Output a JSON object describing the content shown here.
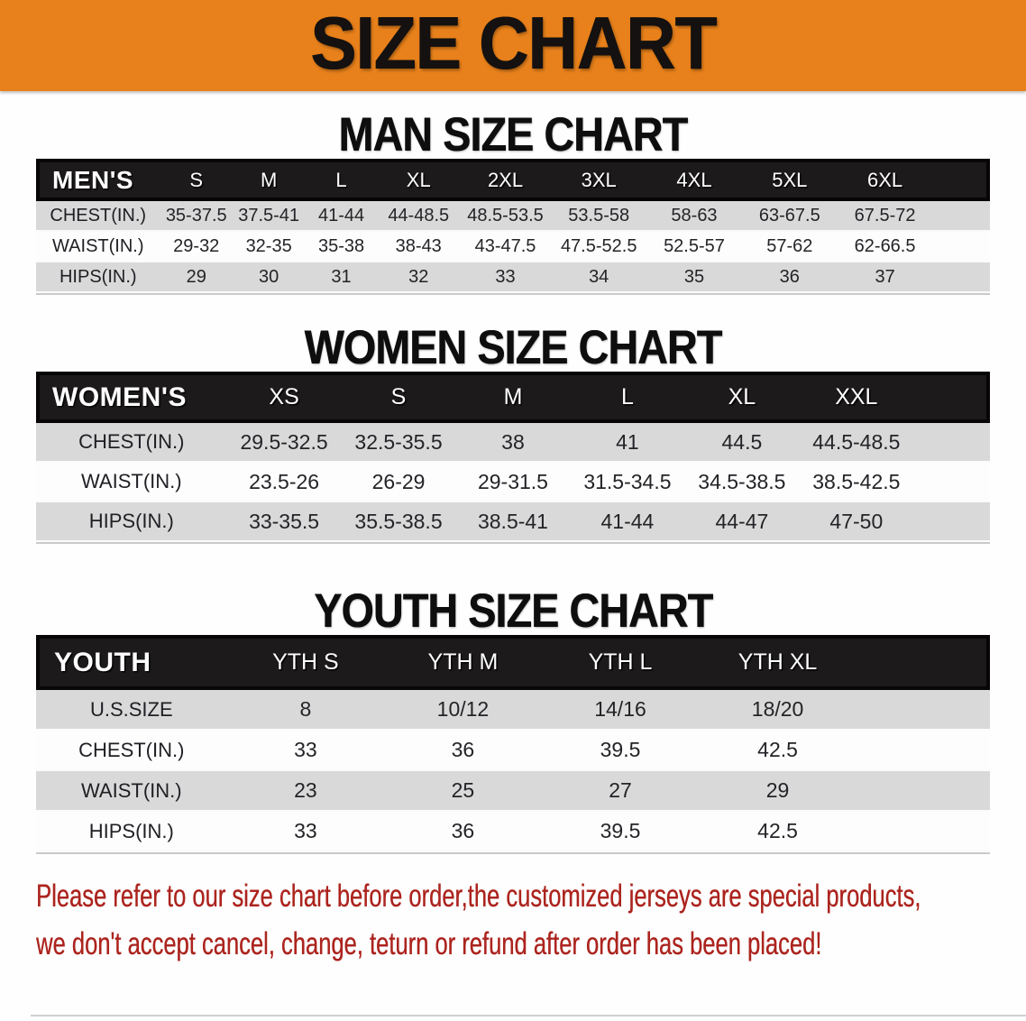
{
  "banner": {
    "title": "SIZE CHART",
    "bg_color": "#E8811B",
    "text_color": "#141110"
  },
  "sections": [
    {
      "id": "men",
      "heading": "MAN SIZE CHART",
      "table": {
        "corner_label": "MEN'S",
        "columns": [
          "S",
          "M",
          "L",
          "XL",
          "2XL",
          "3XL",
          "4XL",
          "5XL",
          "6XL"
        ],
        "rows": [
          {
            "label": "CHEST(IN.)",
            "values": [
              "35-37.5",
              "37.5-41",
              "41-44",
              "44-48.5",
              "48.5-53.5",
              "53.5-58",
              "58-63",
              "63-67.5",
              "67.5-72"
            ]
          },
          {
            "label": "WAIST(IN.)",
            "values": [
              "29-32",
              "32-35",
              "35-38",
              "38-43",
              "43-47.5",
              "47.5-52.5",
              "52.5-57",
              "57-62",
              "62-66.5"
            ]
          },
          {
            "label": "HIPS(IN.)",
            "values": [
              "29",
              "30",
              "31",
              "32",
              "33",
              "34",
              "35",
              "36",
              "37"
            ]
          }
        ]
      }
    },
    {
      "id": "women",
      "heading": "WOMEN SIZE CHART",
      "table": {
        "corner_label": "WOMEN'S",
        "columns": [
          "XS",
          "S",
          "M",
          "L",
          "XL",
          "XXL"
        ],
        "rows": [
          {
            "label": "CHEST(IN.)",
            "values": [
              "29.5-32.5",
              "32.5-35.5",
              "38",
              "41",
              "44.5",
              "44.5-48.5"
            ]
          },
          {
            "label": "WAIST(IN.)",
            "values": [
              "23.5-26",
              "26-29",
              "29-31.5",
              "31.5-34.5",
              "34.5-38.5",
              "38.5-42.5"
            ]
          },
          {
            "label": "HIPS(IN.)",
            "values": [
              "33-35.5",
              "35.5-38.5",
              "38.5-41",
              "41-44",
              "44-47",
              "47-50"
            ]
          }
        ]
      }
    },
    {
      "id": "youth",
      "heading": "YOUTH SIZE CHART",
      "table": {
        "corner_label": "YOUTH",
        "columns": [
          "YTH S",
          "YTH M",
          "YTH L",
          "YTH XL"
        ],
        "rows": [
          {
            "label": "U.S.SIZE",
            "values": [
              "8",
              "10/12",
              "14/16",
              "18/20"
            ]
          },
          {
            "label": "CHEST(IN.)",
            "values": [
              "33",
              "36",
              "39.5",
              "42.5"
            ]
          },
          {
            "label": "WAIST(IN.)",
            "values": [
              "23",
              "25",
              "27",
              "29"
            ]
          },
          {
            "label": "HIPS(IN.)",
            "values": [
              "33",
              "36",
              "39.5",
              "42.5"
            ]
          }
        ]
      }
    }
  ],
  "footer": {
    "line1": "Please refer to our size chart before order,the customized jerseys are special products,",
    "line2": "we don't accept cancel, change, teturn or refund after order has been placed!",
    "text_color": "#AC241E"
  }
}
